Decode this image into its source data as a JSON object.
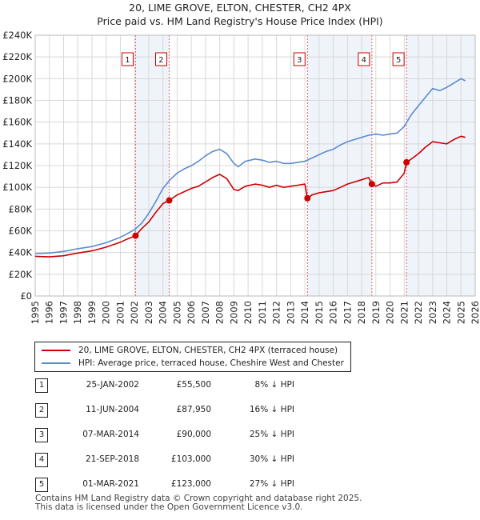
{
  "chart_data": {
    "type": "line",
    "title": "20, LIME GROVE, ELTON, CHESTER, CH2 4PX",
    "subtitle": "Price paid vs. HM Land Registry's House Price Index (HPI)",
    "xlim": [
      1995,
      2026
    ],
    "ylim": [
      0,
      240000
    ],
    "y_ticks": [
      0,
      20000,
      40000,
      60000,
      80000,
      100000,
      120000,
      140000,
      160000,
      180000,
      200000,
      220000,
      240000
    ],
    "y_tick_labels": [
      "£0",
      "£20K",
      "£40K",
      "£60K",
      "£80K",
      "£100K",
      "£120K",
      "£140K",
      "£160K",
      "£180K",
      "£200K",
      "£220K",
      "£240K"
    ],
    "x_ticks": [
      1995,
      1996,
      1997,
      1998,
      1999,
      2000,
      2001,
      2002,
      2003,
      2004,
      2005,
      2006,
      2007,
      2008,
      2009,
      2010,
      2011,
      2012,
      2013,
      2014,
      2015,
      2016,
      2017,
      2018,
      2019,
      2020,
      2021,
      2022,
      2023,
      2024,
      2025,
      2026
    ],
    "x_tick_labels": [
      "1995",
      "1996",
      "1997",
      "1998",
      "1999",
      "2000",
      "2001",
      "2002",
      "2003",
      "2004",
      "2005",
      "2006",
      "2007",
      "2008",
      "2009",
      "2010",
      "2011",
      "2012",
      "2013",
      "2014",
      "2015",
      "2016",
      "2017",
      "2018",
      "2019",
      "2020",
      "2021",
      "2022",
      "2023",
      "2024",
      "2025",
      "2026"
    ],
    "grid": true,
    "series": [
      {
        "name": "20, LIME GROVE, ELTON, CHESTER, CH2 4PX (terraced house)",
        "color": "#cc0000",
        "points": [
          [
            1995.0,
            36500
          ],
          [
            1996.0,
            36000
          ],
          [
            1997.0,
            37000
          ],
          [
            1998.0,
            39500
          ],
          [
            1999.0,
            41500
          ],
          [
            2000.0,
            45000
          ],
          [
            2001.0,
            49500
          ],
          [
            2001.5,
            52500
          ],
          [
            2002.07,
            55500
          ],
          [
            2002.5,
            62000
          ],
          [
            2003.0,
            68000
          ],
          [
            2003.5,
            77000
          ],
          [
            2004.0,
            85000
          ],
          [
            2004.44,
            87950
          ],
          [
            2005.0,
            93000
          ],
          [
            2005.5,
            96000
          ],
          [
            2006.0,
            99000
          ],
          [
            2006.5,
            101000
          ],
          [
            2007.0,
            105000
          ],
          [
            2007.5,
            109000
          ],
          [
            2008.0,
            112000
          ],
          [
            2008.5,
            108000
          ],
          [
            2009.0,
            98000
          ],
          [
            2009.3,
            97000
          ],
          [
            2009.8,
            101000
          ],
          [
            2010.5,
            103000
          ],
          [
            2011.0,
            102000
          ],
          [
            2011.5,
            100000
          ],
          [
            2012.0,
            102000
          ],
          [
            2012.5,
            100000
          ],
          [
            2013.0,
            101000
          ],
          [
            2013.5,
            102000
          ],
          [
            2014.0,
            103000
          ],
          [
            2014.18,
            90000
          ],
          [
            2014.5,
            93000
          ],
          [
            2015.0,
            95000
          ],
          [
            2015.5,
            96000
          ],
          [
            2016.0,
            97000
          ],
          [
            2016.5,
            100000
          ],
          [
            2017.0,
            103000
          ],
          [
            2017.5,
            105000
          ],
          [
            2018.0,
            107000
          ],
          [
            2018.5,
            109000
          ],
          [
            2018.72,
            103000
          ],
          [
            2019.0,
            101000
          ],
          [
            2019.5,
            104000
          ],
          [
            2020.0,
            104000
          ],
          [
            2020.5,
            105000
          ],
          [
            2021.0,
            113000
          ],
          [
            2021.16,
            123000
          ],
          [
            2021.5,
            126000
          ],
          [
            2022.0,
            131000
          ],
          [
            2022.5,
            137000
          ],
          [
            2023.0,
            142000
          ],
          [
            2023.5,
            141000
          ],
          [
            2024.0,
            140000
          ],
          [
            2024.5,
            144000
          ],
          [
            2025.0,
            147000
          ],
          [
            2025.3,
            146000
          ]
        ]
      },
      {
        "name": "HPI: Average price, terraced house, Cheshire West and Chester",
        "color": "#5b8bd0",
        "points": [
          [
            1995.0,
            39000
          ],
          [
            1996.0,
            39500
          ],
          [
            1997.0,
            41000
          ],
          [
            1998.0,
            43500
          ],
          [
            1999.0,
            45500
          ],
          [
            2000.0,
            49000
          ],
          [
            2001.0,
            54000
          ],
          [
            2001.5,
            57500
          ],
          [
            2002.0,
            61000
          ],
          [
            2002.5,
            67000
          ],
          [
            2003.0,
            76000
          ],
          [
            2003.5,
            87000
          ],
          [
            2004.0,
            99000
          ],
          [
            2004.5,
            107000
          ],
          [
            2005.0,
            113000
          ],
          [
            2005.5,
            117000
          ],
          [
            2006.0,
            120000
          ],
          [
            2006.5,
            124000
          ],
          [
            2007.0,
            129000
          ],
          [
            2007.5,
            133000
          ],
          [
            2008.0,
            135000
          ],
          [
            2008.5,
            131000
          ],
          [
            2009.0,
            122000
          ],
          [
            2009.3,
            119000
          ],
          [
            2009.8,
            124000
          ],
          [
            2010.5,
            126000
          ],
          [
            2011.0,
            125000
          ],
          [
            2011.5,
            123000
          ],
          [
            2012.0,
            124000
          ],
          [
            2012.5,
            122000
          ],
          [
            2013.0,
            122000
          ],
          [
            2013.5,
            123000
          ],
          [
            2014.0,
            124000
          ],
          [
            2014.5,
            127000
          ],
          [
            2015.0,
            130000
          ],
          [
            2015.5,
            133000
          ],
          [
            2016.0,
            135000
          ],
          [
            2016.5,
            139000
          ],
          [
            2017.0,
            142000
          ],
          [
            2017.5,
            144000
          ],
          [
            2018.0,
            146000
          ],
          [
            2018.5,
            148000
          ],
          [
            2019.0,
            149000
          ],
          [
            2019.5,
            148000
          ],
          [
            2020.0,
            149000
          ],
          [
            2020.5,
            150000
          ],
          [
            2021.0,
            156000
          ],
          [
            2021.5,
            167000
          ],
          [
            2022.0,
            175000
          ],
          [
            2022.5,
            183000
          ],
          [
            2023.0,
            191000
          ],
          [
            2023.5,
            189000
          ],
          [
            2024.0,
            192000
          ],
          [
            2024.5,
            196000
          ],
          [
            2025.0,
            200000
          ],
          [
            2025.3,
            198000
          ]
        ]
      }
    ],
    "sales": [
      {
        "num": "1",
        "x": 2002.07,
        "y": 55500
      },
      {
        "num": "2",
        "x": 2004.44,
        "y": 87950
      },
      {
        "num": "3",
        "x": 2014.18,
        "y": 90000
      },
      {
        "num": "4",
        "x": 2018.72,
        "y": 103000
      },
      {
        "num": "5",
        "x": 2021.16,
        "y": 123000
      }
    ],
    "shaded_periods": [
      [
        2002.07,
        2004.44
      ],
      [
        2014.18,
        2018.72
      ],
      [
        2021.16,
        2026.0
      ]
    ]
  },
  "legend": {
    "property_label": "20, LIME GROVE, ELTON, CHESTER, CH2 4PX (terraced house)",
    "hpi_label": "HPI: Average price, terraced house, Cheshire West and Chester",
    "property_color": "#cc0000",
    "hpi_color": "#5b8bd0"
  },
  "sales_table": [
    {
      "num": "1",
      "date": "25-JAN-2002",
      "price": "£55,500",
      "hpi": "8% ↓ HPI"
    },
    {
      "num": "2",
      "date": "11-JUN-2004",
      "price": "£87,950",
      "hpi": "16% ↓ HPI"
    },
    {
      "num": "3",
      "date": "07-MAR-2014",
      "price": "£90,000",
      "hpi": "25% ↓ HPI"
    },
    {
      "num": "4",
      "date": "21-SEP-2018",
      "price": "£103,000",
      "hpi": "30% ↓ HPI"
    },
    {
      "num": "5",
      "date": "01-MAR-2021",
      "price": "£123,000",
      "hpi": "27% ↓ HPI"
    }
  ],
  "footer": {
    "line1": "Contains HM Land Registry data © Crown copyright and database right 2025.",
    "line2": "This data is licensed under the Open Government Licence v3.0."
  }
}
